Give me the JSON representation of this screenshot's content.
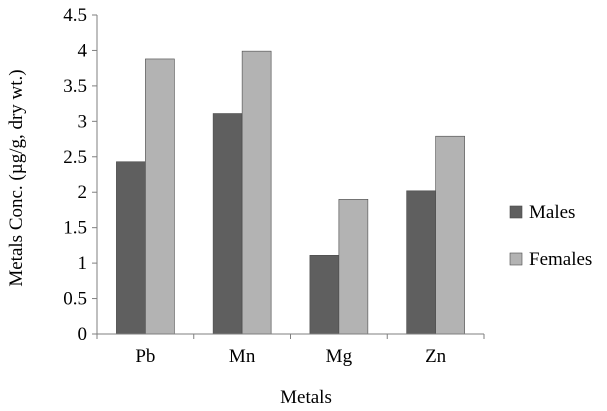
{
  "chart_data": {
    "type": "bar",
    "categories": [
      "Pb",
      "Mn",
      "Mg",
      "Zn"
    ],
    "series": [
      {
        "name": "Males",
        "values": [
          2.43,
          3.11,
          1.11,
          2.02
        ],
        "color": "#5f5f5f"
      },
      {
        "name": "Females",
        "values": [
          3.88,
          3.99,
          1.9,
          2.79
        ],
        "color": "#b3b3b3"
      }
    ],
    "xlabel": "Metals",
    "ylabel": "Metals Conc. (µg/g, dry wt.)",
    "ylim": [
      0,
      4.5
    ],
    "yticks": [
      "0",
      "0.5",
      "1",
      "1.5",
      "2",
      "2.5",
      "3",
      "3.5",
      "4",
      "4.5"
    ],
    "grid": false,
    "legend_position": "right"
  }
}
